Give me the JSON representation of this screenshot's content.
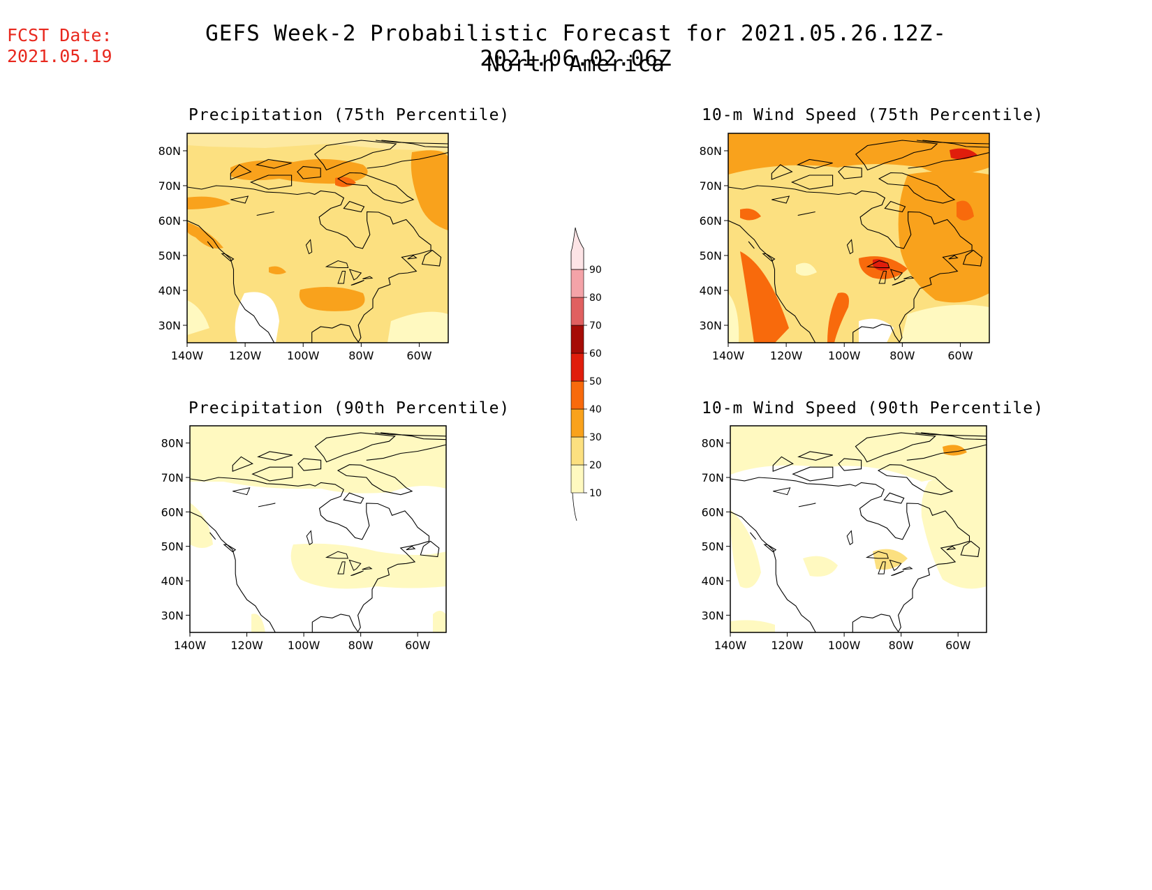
{
  "header": {
    "fcst_label": "FCST Date:",
    "fcst_date": "2021.05.19",
    "title": "GEFS Week-2 Probabilistic Forecast for 2021.05.26.12Z-2021.06.02.06Z",
    "subtitle": "North America"
  },
  "panels": [
    {
      "title": "Precipitation (75th Percentile)"
    },
    {
      "title": "10-m Wind Speed (75th Percentile)"
    },
    {
      "title": "Precipitation (90th Percentile)"
    },
    {
      "title": "10-m Wind Speed (90th Percentile)"
    }
  ],
  "axes": {
    "lat_labels": [
      "80N",
      "70N",
      "60N",
      "50N",
      "40N",
      "30N"
    ],
    "lat_values": [
      80,
      70,
      60,
      50,
      40,
      30
    ],
    "lon_labels": [
      "140W",
      "120W",
      "100W",
      "80W",
      "60W"
    ],
    "lon_values": [
      -140,
      -120,
      -100,
      -80,
      -60
    ],
    "lon_range": [
      -140,
      -50
    ],
    "lat_range": [
      25,
      85
    ]
  },
  "colorbar": {
    "levels": [
      "10",
      "20",
      "30",
      "40",
      "50",
      "60",
      "70",
      "80",
      "90"
    ],
    "colors": [
      "#fff9c0",
      "#fce080",
      "#f9a21c",
      "#f86a0c",
      "#e01e0c",
      "#a60c06",
      "#e06060",
      "#f4a3a8",
      "#fde4e6"
    ]
  }
}
